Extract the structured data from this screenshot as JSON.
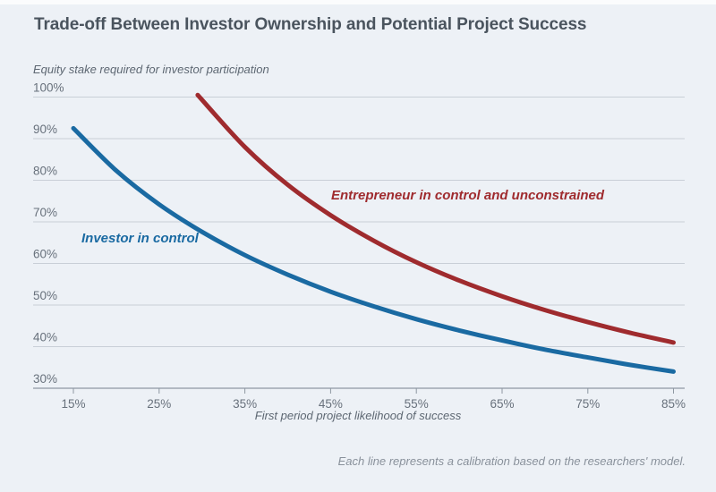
{
  "chart_data": {
    "type": "line",
    "title": "Trade-off Between Investor Ownership and Potential Project Success",
    "xlabel": "First period project likelihood of success",
    "ylabel": "Equity stake required for investor participation",
    "footnote": "Each line represents a calibration based on the researchers' model.",
    "xlim": [
      10.3,
      86.3
    ],
    "ylim": [
      30,
      100
    ],
    "grid": "horizontal",
    "legend_position": "inline-labels",
    "x_tick_values": [
      15,
      25,
      35,
      45,
      55,
      65,
      75,
      85
    ],
    "x_tick_labels": [
      "15%",
      "25%",
      "35%",
      "45%",
      "55%",
      "65%",
      "75%",
      "85%"
    ],
    "y_tick_values": [
      100,
      90,
      80,
      70,
      60,
      50,
      40,
      30
    ],
    "y_tick_labels": [
      "100%",
      "90%",
      "80%",
      "70%",
      "60%",
      "50%",
      "40%",
      "30%"
    ],
    "series": [
      {
        "name": "Investor in control",
        "color": "#1a6aa2",
        "x": [
          15,
          20,
          25,
          30,
          35,
          40,
          45,
          50,
          55,
          60,
          65,
          70,
          75,
          80,
          85
        ],
        "y": [
          92.5,
          82.3,
          74.2,
          67.6,
          62.0,
          57.3,
          53.2,
          49.7,
          46.6,
          43.9,
          41.5,
          39.3,
          37.4,
          35.6,
          34.0
        ]
      },
      {
        "name": "Entrepreneur in control and unconstrained",
        "color": "#9f2b2e",
        "x": [
          29.5,
          35,
          40,
          45,
          50,
          55,
          60,
          65,
          70,
          75,
          80,
          85
        ],
        "y": [
          100.5,
          88.0,
          78.9,
          71.6,
          65.5,
          60.3,
          55.9,
          52.1,
          48.8,
          45.9,
          43.3,
          41.0
        ]
      }
    ]
  },
  "colors": {
    "background": "#edf1f6",
    "top_strip": "#fbfcfd",
    "gridline": "#c9cfd7",
    "axis": "#8e98a2",
    "tick_label": "#68717c",
    "axis_title": "#5d6772",
    "title": "#4a545e",
    "footnote": "#89919b"
  }
}
